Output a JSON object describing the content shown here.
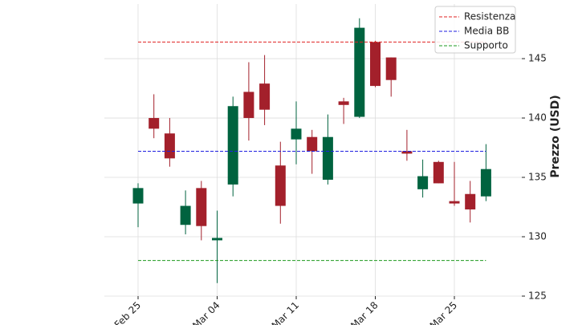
{
  "chart_data": {
    "type": "candlestick",
    "categories": [
      "Feb 25",
      null,
      null,
      null,
      null,
      "Mar 04",
      null,
      null,
      null,
      null,
      "Mar 11",
      null,
      null,
      null,
      null,
      "Mar 18",
      null,
      null,
      null,
      null,
      "Mar 25",
      null,
      null
    ],
    "open": [
      132.8,
      140.0,
      138.7,
      131.0,
      134.1,
      129.7,
      134.4,
      142.2,
      142.9,
      136.0,
      138.2,
      138.4,
      134.8,
      141.4,
      140.1,
      146.4,
      145.1,
      137.2,
      134.0,
      136.3,
      133.0,
      133.6,
      133.4
    ],
    "high": [
      134.5,
      142.0,
      140.0,
      133.9,
      134.7,
      132.2,
      141.8,
      144.7,
      145.3,
      138.0,
      141.4,
      139.0,
      140.3,
      141.7,
      148.4,
      146.5,
      145.1,
      139.0,
      136.5,
      136.4,
      136.3,
      134.7,
      137.8
    ],
    "low": [
      130.8,
      138.3,
      135.9,
      130.2,
      129.7,
      126.1,
      133.4,
      138.1,
      139.4,
      131.1,
      136.1,
      135.3,
      134.4,
      139.5,
      140.0,
      142.6,
      141.8,
      136.4,
      133.3,
      134.5,
      132.6,
      131.2,
      133.0
    ],
    "close": [
      134.1,
      139.1,
      136.6,
      132.6,
      130.9,
      129.9,
      141.0,
      140.0,
      140.7,
      132.6,
      139.1,
      137.2,
      138.4,
      141.1,
      147.6,
      142.7,
      143.2,
      137.0,
      135.1,
      134.5,
      132.8,
      132.3,
      135.7
    ],
    "up_color": "#00633f",
    "down_color": "#a3202b",
    "hlines": [
      {
        "name": "Resistenza",
        "value": 146.4,
        "color": "#e02020"
      },
      {
        "name": "Media BB",
        "value": 137.2,
        "color": "#1f1fe0"
      },
      {
        "name": "Supporto",
        "value": 128.0,
        "color": "#1f9a1f"
      }
    ],
    "ylabel": "Prezzo (USD)",
    "ylim": [
      125,
      149.6
    ],
    "yticks": [
      125,
      130,
      135,
      140,
      145
    ],
    "grid": true,
    "legend": "upper right"
  }
}
